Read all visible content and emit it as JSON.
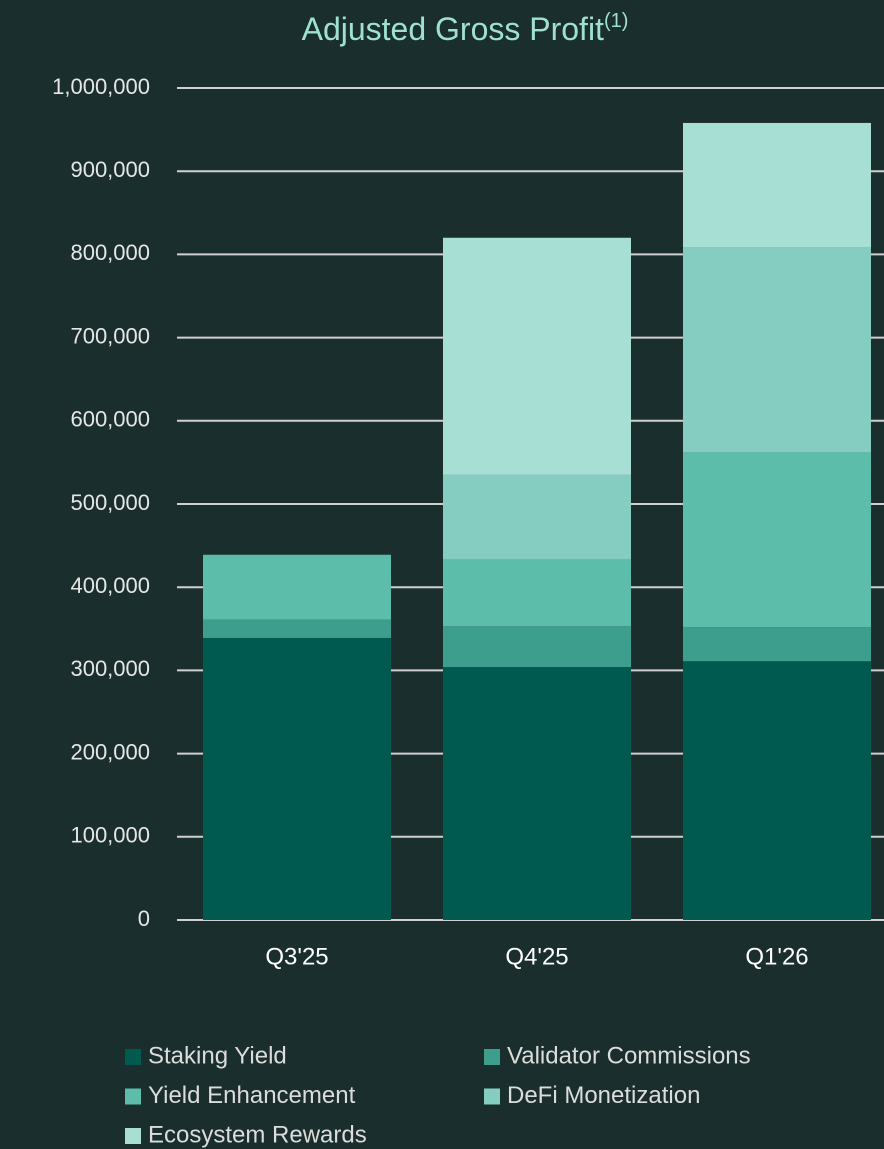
{
  "chart_data": {
    "type": "stacked_bar",
    "title": "Adjusted Gross Profit",
    "title_note": "(1)",
    "categories": [
      "Q3'25",
      "Q4'25",
      "Q1'26"
    ],
    "series": [
      {
        "name": "Staking Yield",
        "color": "#005a50",
        "values": [
          339000,
          304000,
          311000
        ]
      },
      {
        "name": "Validator Commissions",
        "color": "#3e9e8d",
        "values": [
          22000,
          49000,
          41000
        ]
      },
      {
        "name": "Yield Enhancement",
        "color": "#5cbdab",
        "values": [
          78000,
          80000,
          210000
        ]
      },
      {
        "name": "DeFi Monetization",
        "color": "#84cdc0",
        "values": [
          0,
          102000,
          246000
        ]
      },
      {
        "name": "Ecosystem Rewards",
        "color": "#a8dfd5",
        "values": [
          0,
          285000,
          150000
        ]
      }
    ],
    "ylim": [
      0,
      1000000
    ],
    "yticks": [
      0,
      {
        "value": 100000,
        "label": "100,000"
      },
      {
        "value": 200000,
        "label": "200,000"
      },
      {
        "value": 300000,
        "label": "300,000"
      },
      {
        "value": 400000,
        "label": "400,000"
      },
      {
        "value": 500000,
        "label": "500,000"
      },
      {
        "value": 600000,
        "label": "600,000"
      },
      {
        "value": 700000,
        "label": "700,000"
      },
      {
        "value": 800000,
        "label": "800,000"
      },
      {
        "value": 900000,
        "label": "900,000"
      },
      {
        "value": 1000000,
        "label": "1,000,000"
      }
    ],
    "grid": true
  }
}
